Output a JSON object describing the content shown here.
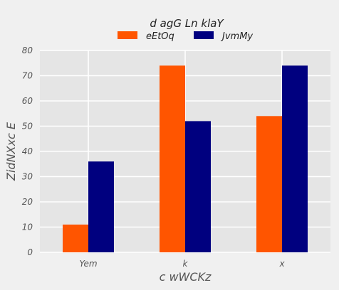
{
  "chart_data": {
    "type": "bar",
    "categories": [
      "Yem",
      "k",
      "x"
    ],
    "series": [
      {
        "name": "eEtOq",
        "values": [
          11,
          74,
          54
        ],
        "color": "#ff5500"
      },
      {
        "name": "JvmMy",
        "values": [
          36,
          52,
          74
        ],
        "color": "#00007f"
      }
    ],
    "legend_title": "d agG Ln  klaY",
    "xlabel": "c wWCKz",
    "ylabel": "ZidNXxc  E",
    "ylim": [
      0,
      80
    ],
    "yticks": [
      0,
      10,
      20,
      30,
      40,
      50,
      60,
      70,
      80
    ],
    "grid": true,
    "legend_position": "top-center"
  }
}
